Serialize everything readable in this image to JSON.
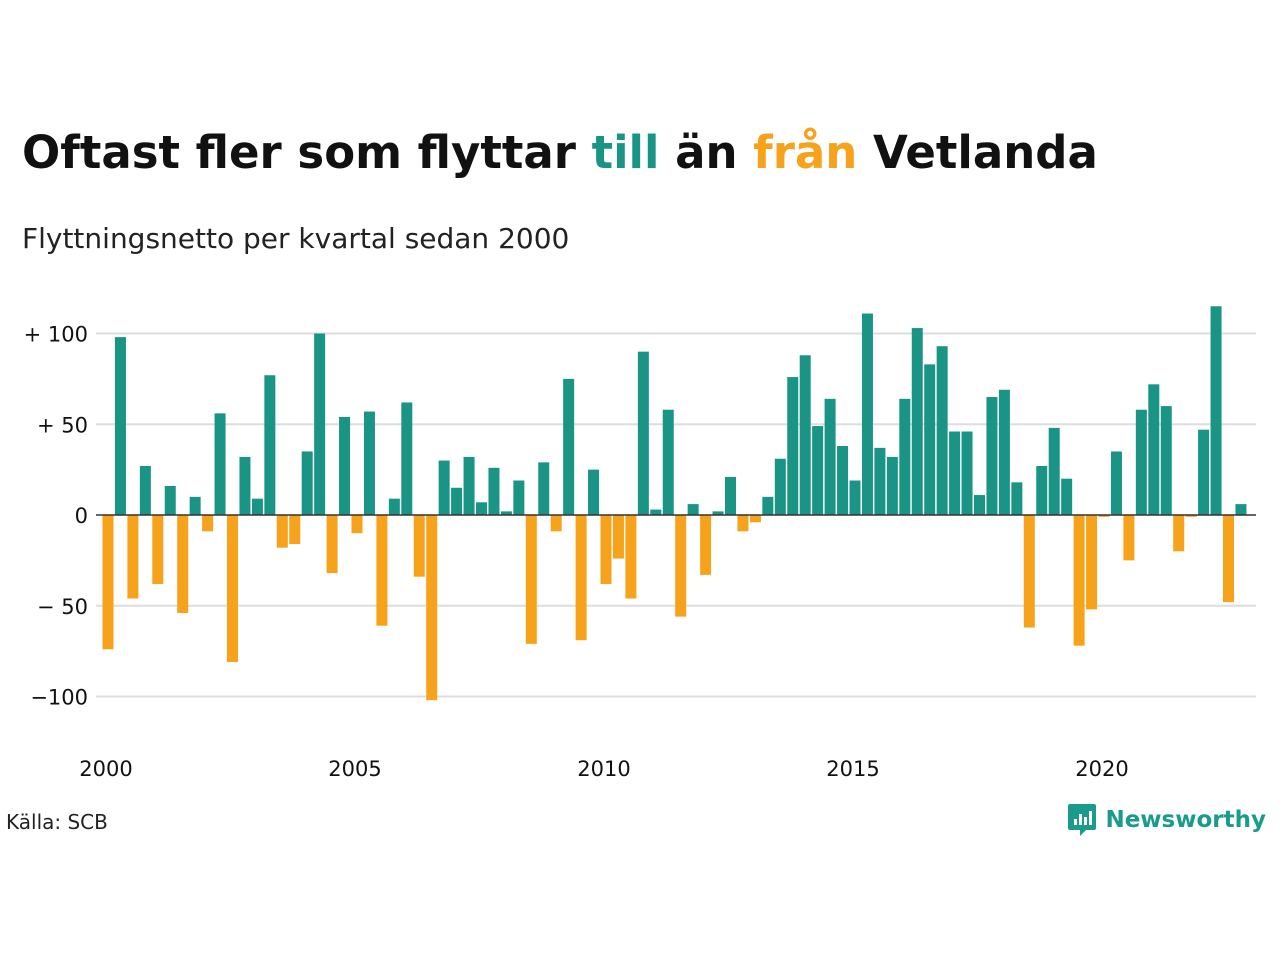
{
  "headline": {
    "part1": "Oftast fler som flyttar ",
    "till": "till",
    "part2": " än ",
    "fran": "från",
    "part3": " Vetlanda"
  },
  "subtitle": "Flyttningsnetto per kvartal sedan 2000",
  "source": "Källa: SCB",
  "brand": {
    "name": "Newsworthy",
    "color": "#1a9c8c"
  },
  "colors": {
    "positive": "#1a9485",
    "negative": "#f7a21b",
    "grid": "#dddddd",
    "zero": "#333333"
  },
  "chart_data": {
    "type": "bar",
    "title": "Oftast fler som flyttar till än från Vetlanda",
    "subtitle": "Flyttningsnetto per kvartal sedan 2000",
    "x_start_year": 2000,
    "x_start_quarter": 1,
    "ylim": [
      -110,
      120
    ],
    "y_ticks": [
      100,
      50,
      0,
      -50,
      -100
    ],
    "y_tick_labels": [
      "+ 100",
      "+  50",
      "0",
      "− 50",
      "−100"
    ],
    "x_ticks": [
      2000,
      2005,
      2010,
      2015,
      2020
    ],
    "x_tick_labels": [
      "2000",
      "2005",
      "2010",
      "2015",
      "2020"
    ],
    "grid": true,
    "values": [
      -74,
      98,
      -46,
      27,
      -38,
      16,
      -54,
      10,
      -9,
      56,
      -81,
      32,
      9,
      77,
      -18,
      -16,
      35,
      100,
      -32,
      54,
      -10,
      57,
      -61,
      9,
      62,
      -34,
      -102,
      30,
      15,
      32,
      7,
      26,
      2,
      19,
      -71,
      29,
      -9,
      75,
      -69,
      25,
      -38,
      -24,
      -46,
      90,
      3,
      58,
      -56,
      6,
      -33,
      2,
      21,
      -9,
      -4,
      10,
      31,
      76,
      88,
      49,
      64,
      38,
      19,
      111,
      37,
      32,
      64,
      103,
      83,
      93,
      46,
      46,
      11,
      65,
      69,
      18,
      -62,
      27,
      48,
      20,
      -72,
      -52,
      -1,
      35,
      -25,
      58,
      72,
      60,
      -20,
      -1,
      47,
      115,
      -48,
      6
    ]
  }
}
